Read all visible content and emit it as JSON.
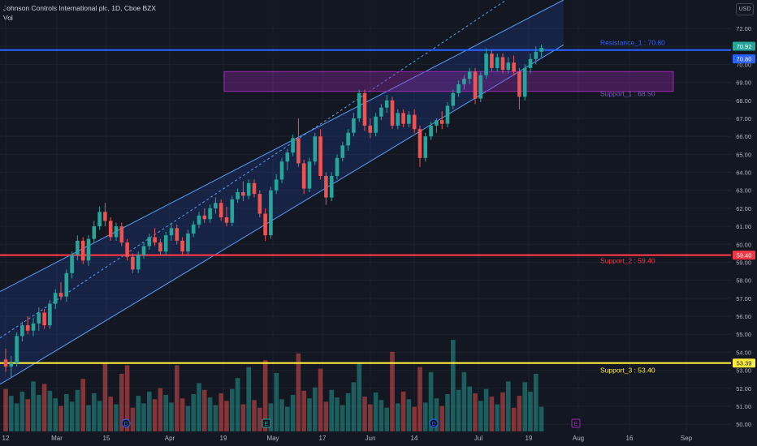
{
  "header": {
    "title": "Johnson Controls International plc, 1D, Cboe BZX",
    "volume_label": "Vol"
  },
  "currency_button": "USD",
  "colors": {
    "background": "#131722",
    "up": "#26a69a",
    "down": "#ef5350",
    "channel": "#2962ff",
    "resistance": "#2962ff",
    "support_1": "#9c27b0",
    "support_2": "#f23645",
    "support_3": "#ffeb3b"
  },
  "chart_data": {
    "type": "candlestick",
    "x_ticks": [
      "12",
      "Mar",
      "15",
      "Apr",
      "19",
      "May",
      "17",
      "Jun",
      "14",
      "Jul",
      "19",
      "Aug",
      "16",
      "Sep"
    ],
    "y_ticks": [
      50.0,
      51.0,
      52.0,
      53.0,
      54.0,
      55.0,
      56.0,
      57.0,
      58.0,
      59.0,
      60.0,
      61.0,
      62.0,
      63.0,
      64.0,
      65.0,
      66.0,
      67.0,
      68.0,
      69.0,
      70.0,
      71.0,
      72.0
    ],
    "ylim": [
      49.6,
      73.4
    ],
    "price_labels": {
      "last": "70.92",
      "resistance": "70.80",
      "support_2": "59.40",
      "support_3": "53.39"
    },
    "levels": [
      {
        "label": "Resistance_1 : 70.80",
        "value": 70.8
      },
      {
        "label": "Support_1 : 68.50",
        "low": 68.5,
        "high": 69.6
      },
      {
        "label": "Support_2 : 59.40",
        "value": 59.4
      },
      {
        "label": "Support_3 : 53.40",
        "value": 53.4
      }
    ],
    "event_markers": [
      "D",
      "E",
      "E",
      "D",
      "E"
    ],
    "candles": [
      {
        "o": 53.6,
        "h": 54.2,
        "l": 52.9,
        "c": 53.2
      },
      {
        "o": 53.2,
        "h": 53.8,
        "l": 52.6,
        "c": 53.4
      },
      {
        "o": 53.4,
        "h": 55.1,
        "l": 53.2,
        "c": 54.9
      },
      {
        "o": 54.9,
        "h": 55.7,
        "l": 54.6,
        "c": 55.5
      },
      {
        "o": 55.5,
        "h": 56.0,
        "l": 55.0,
        "c": 55.2
      },
      {
        "o": 55.2,
        "h": 55.9,
        "l": 54.9,
        "c": 55.6
      },
      {
        "o": 55.6,
        "h": 56.5,
        "l": 55.2,
        "c": 56.2
      },
      {
        "o": 56.2,
        "h": 56.4,
        "l": 55.3,
        "c": 55.5
      },
      {
        "o": 55.5,
        "h": 56.9,
        "l": 55.3,
        "c": 56.7
      },
      {
        "o": 56.7,
        "h": 57.5,
        "l": 56.4,
        "c": 57.3
      },
      {
        "o": 57.3,
        "h": 57.9,
        "l": 56.9,
        "c": 57.1
      },
      {
        "o": 57.1,
        "h": 58.6,
        "l": 56.8,
        "c": 58.4
      },
      {
        "o": 58.4,
        "h": 59.6,
        "l": 58.1,
        "c": 59.4
      },
      {
        "o": 59.4,
        "h": 60.5,
        "l": 59.1,
        "c": 60.2
      },
      {
        "o": 60.2,
        "h": 60.4,
        "l": 58.9,
        "c": 59.1
      },
      {
        "o": 59.1,
        "h": 60.5,
        "l": 58.8,
        "c": 60.3
      },
      {
        "o": 60.3,
        "h": 61.3,
        "l": 60.1,
        "c": 61.0
      },
      {
        "o": 61.0,
        "h": 62.1,
        "l": 60.8,
        "c": 61.8
      },
      {
        "o": 61.8,
        "h": 62.3,
        "l": 61.0,
        "c": 61.3
      },
      {
        "o": 61.3,
        "h": 61.5,
        "l": 60.2,
        "c": 60.4
      },
      {
        "o": 60.4,
        "h": 61.2,
        "l": 60.2,
        "c": 61.0
      },
      {
        "o": 61.0,
        "h": 61.2,
        "l": 59.9,
        "c": 60.1
      },
      {
        "o": 60.1,
        "h": 60.3,
        "l": 59.1,
        "c": 59.3
      },
      {
        "o": 59.3,
        "h": 59.5,
        "l": 58.4,
        "c": 58.6
      },
      {
        "o": 58.6,
        "h": 59.6,
        "l": 58.4,
        "c": 59.4
      },
      {
        "o": 59.4,
        "h": 60.1,
        "l": 59.2,
        "c": 59.9
      },
      {
        "o": 59.9,
        "h": 60.6,
        "l": 59.7,
        "c": 60.4
      },
      {
        "o": 60.4,
        "h": 60.9,
        "l": 59.9,
        "c": 60.1
      },
      {
        "o": 60.1,
        "h": 60.3,
        "l": 59.4,
        "c": 59.6
      },
      {
        "o": 59.6,
        "h": 60.7,
        "l": 59.4,
        "c": 60.5
      },
      {
        "o": 60.5,
        "h": 61.2,
        "l": 60.2,
        "c": 60.9
      },
      {
        "o": 60.9,
        "h": 61.1,
        "l": 60.0,
        "c": 60.2
      },
      {
        "o": 60.2,
        "h": 60.4,
        "l": 59.4,
        "c": 59.6
      },
      {
        "o": 59.6,
        "h": 60.8,
        "l": 59.4,
        "c": 60.6
      },
      {
        "o": 60.6,
        "h": 61.3,
        "l": 60.4,
        "c": 61.1
      },
      {
        "o": 61.1,
        "h": 61.8,
        "l": 60.9,
        "c": 61.6
      },
      {
        "o": 61.6,
        "h": 62.0,
        "l": 61.2,
        "c": 61.4
      },
      {
        "o": 61.4,
        "h": 62.2,
        "l": 61.2,
        "c": 62.0
      },
      {
        "o": 62.0,
        "h": 62.6,
        "l": 61.7,
        "c": 62.3
      },
      {
        "o": 62.3,
        "h": 62.5,
        "l": 61.3,
        "c": 61.5
      },
      {
        "o": 61.5,
        "h": 62.1,
        "l": 61.0,
        "c": 61.2
      },
      {
        "o": 61.2,
        "h": 62.7,
        "l": 61.0,
        "c": 62.5
      },
      {
        "o": 62.5,
        "h": 63.1,
        "l": 62.3,
        "c": 62.9
      },
      {
        "o": 62.9,
        "h": 63.5,
        "l": 62.4,
        "c": 62.7
      },
      {
        "o": 62.7,
        "h": 63.6,
        "l": 62.5,
        "c": 63.4
      },
      {
        "o": 63.4,
        "h": 63.6,
        "l": 62.6,
        "c": 62.8
      },
      {
        "o": 62.8,
        "h": 63.0,
        "l": 61.5,
        "c": 61.7
      },
      {
        "o": 61.7,
        "h": 62.0,
        "l": 60.2,
        "c": 60.5
      },
      {
        "o": 60.5,
        "h": 63.2,
        "l": 60.3,
        "c": 63.0
      },
      {
        "o": 63.0,
        "h": 63.9,
        "l": 62.8,
        "c": 63.6
      },
      {
        "o": 63.6,
        "h": 64.8,
        "l": 63.4,
        "c": 64.6
      },
      {
        "o": 64.6,
        "h": 65.3,
        "l": 64.1,
        "c": 65.1
      },
      {
        "o": 65.1,
        "h": 66.1,
        "l": 64.9,
        "c": 65.9
      },
      {
        "o": 65.9,
        "h": 67.0,
        "l": 64.3,
        "c": 64.5
      },
      {
        "o": 64.5,
        "h": 64.7,
        "l": 62.8,
        "c": 63.1
      },
      {
        "o": 63.1,
        "h": 64.8,
        "l": 62.9,
        "c": 64.6
      },
      {
        "o": 64.6,
        "h": 66.2,
        "l": 64.4,
        "c": 66.0
      },
      {
        "o": 66.0,
        "h": 66.4,
        "l": 63.6,
        "c": 63.8
      },
      {
        "o": 63.8,
        "h": 64.0,
        "l": 62.2,
        "c": 62.6
      },
      {
        "o": 62.6,
        "h": 64.0,
        "l": 62.4,
        "c": 63.8
      },
      {
        "o": 63.8,
        "h": 65.0,
        "l": 63.6,
        "c": 64.8
      },
      {
        "o": 64.8,
        "h": 65.7,
        "l": 64.6,
        "c": 65.5
      },
      {
        "o": 65.5,
        "h": 66.4,
        "l": 65.2,
        "c": 66.2
      },
      {
        "o": 66.2,
        "h": 67.3,
        "l": 66.0,
        "c": 67.0
      },
      {
        "o": 67.0,
        "h": 68.6,
        "l": 66.8,
        "c": 68.4
      },
      {
        "o": 68.4,
        "h": 68.6,
        "l": 66.3,
        "c": 66.6
      },
      {
        "o": 66.6,
        "h": 67.0,
        "l": 65.9,
        "c": 66.2
      },
      {
        "o": 66.2,
        "h": 67.3,
        "l": 66.0,
        "c": 67.1
      },
      {
        "o": 67.1,
        "h": 67.8,
        "l": 66.9,
        "c": 67.6
      },
      {
        "o": 67.6,
        "h": 68.3,
        "l": 67.3,
        "c": 68.0
      },
      {
        "o": 68.0,
        "h": 68.2,
        "l": 66.4,
        "c": 66.6
      },
      {
        "o": 66.6,
        "h": 67.5,
        "l": 66.4,
        "c": 67.3
      },
      {
        "o": 67.3,
        "h": 67.5,
        "l": 66.5,
        "c": 66.7
      },
      {
        "o": 66.7,
        "h": 67.4,
        "l": 66.5,
        "c": 67.2
      },
      {
        "o": 67.2,
        "h": 67.5,
        "l": 66.2,
        "c": 66.4
      },
      {
        "o": 66.4,
        "h": 66.6,
        "l": 64.3,
        "c": 64.8
      },
      {
        "o": 64.8,
        "h": 66.2,
        "l": 64.6,
        "c": 66.0
      },
      {
        "o": 66.0,
        "h": 66.8,
        "l": 65.8,
        "c": 66.6
      },
      {
        "o": 66.6,
        "h": 67.0,
        "l": 66.2,
        "c": 66.9
      },
      {
        "o": 66.9,
        "h": 67.4,
        "l": 66.4,
        "c": 66.7
      },
      {
        "o": 66.7,
        "h": 67.9,
        "l": 66.5,
        "c": 67.7
      },
      {
        "o": 67.7,
        "h": 68.6,
        "l": 67.5,
        "c": 68.4
      },
      {
        "o": 68.4,
        "h": 69.1,
        "l": 68.2,
        "c": 68.9
      },
      {
        "o": 68.9,
        "h": 69.4,
        "l": 68.6,
        "c": 69.2
      },
      {
        "o": 69.2,
        "h": 69.8,
        "l": 68.9,
        "c": 69.6
      },
      {
        "o": 69.6,
        "h": 69.8,
        "l": 67.8,
        "c": 68.1
      },
      {
        "o": 68.1,
        "h": 69.6,
        "l": 67.9,
        "c": 69.4
      },
      {
        "o": 69.4,
        "h": 70.9,
        "l": 69.2,
        "c": 70.6
      },
      {
        "o": 70.6,
        "h": 70.8,
        "l": 69.6,
        "c": 69.8
      },
      {
        "o": 69.8,
        "h": 70.6,
        "l": 69.6,
        "c": 70.4
      },
      {
        "o": 70.4,
        "h": 70.6,
        "l": 69.5,
        "c": 69.7
      },
      {
        "o": 69.7,
        "h": 70.4,
        "l": 69.5,
        "c": 70.1
      },
      {
        "o": 70.1,
        "h": 70.5,
        "l": 69.4,
        "c": 69.6
      },
      {
        "o": 69.6,
        "h": 69.8,
        "l": 67.5,
        "c": 68.2
      },
      {
        "o": 68.2,
        "h": 70.0,
        "l": 68.0,
        "c": 69.8
      },
      {
        "o": 69.8,
        "h": 70.6,
        "l": 69.5,
        "c": 70.3
      },
      {
        "o": 70.3,
        "h": 71.0,
        "l": 70.0,
        "c": 70.7
      },
      {
        "o": 70.7,
        "h": 71.1,
        "l": 70.4,
        "c": 70.92
      }
    ],
    "volume_scale": 50
  }
}
